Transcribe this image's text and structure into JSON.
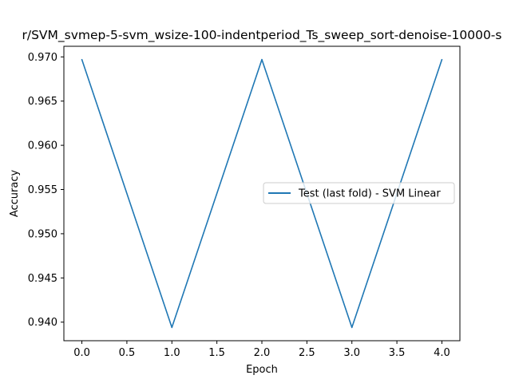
{
  "chart_data": {
    "type": "line",
    "title": "r/SVM_svmep-5-svm_wsize-100-indentperiod_Ts_sweep_sort-denoise-10000-s",
    "xlabel": "Epoch",
    "ylabel": "Accuracy",
    "xlim": [
      -0.2,
      4.2
    ],
    "ylim": [
      0.9379,
      0.9712
    ],
    "xticks": [
      0.0,
      0.5,
      1.0,
      1.5,
      2.0,
      2.5,
      3.0,
      3.5,
      4.0
    ],
    "xtick_labels": [
      "0.0",
      "0.5",
      "1.0",
      "1.5",
      "2.0",
      "2.5",
      "3.0",
      "3.5",
      "4.0"
    ],
    "yticks": [
      0.94,
      0.945,
      0.95,
      0.955,
      0.96,
      0.965,
      0.97
    ],
    "ytick_labels": [
      "0.940",
      "0.945",
      "0.950",
      "0.955",
      "0.960",
      "0.965",
      "0.970"
    ],
    "grid": false,
    "legend_position": "center-right",
    "series": [
      {
        "name": "Test (last fold) - SVM Linear",
        "color": "#1f77b4",
        "x": [
          0,
          1,
          2,
          3,
          4
        ],
        "y": [
          0.9697,
          0.9394,
          0.9697,
          0.9394,
          0.9697
        ]
      }
    ]
  }
}
